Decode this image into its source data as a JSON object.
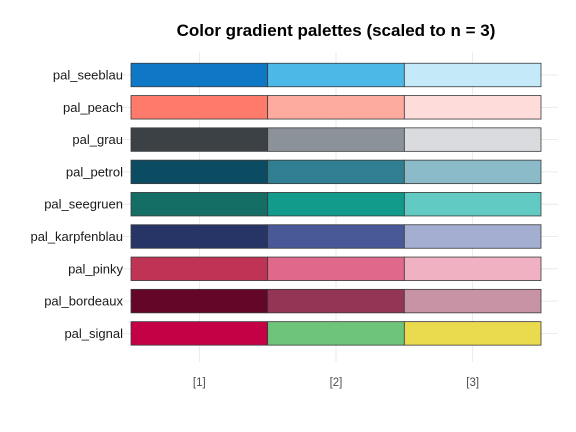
{
  "chart_data": {
    "type": "heatmap",
    "title": "Color gradient palettes (scaled to n = 3)",
    "xlabel": "",
    "ylabel": "",
    "x": [
      "[1]",
      "[2]",
      "[3]"
    ],
    "grid": true,
    "palettes": [
      {
        "name": "pal_seeblau",
        "colors": [
          "#0f78c6",
          "#4cb8e7",
          "#c4eaf9"
        ]
      },
      {
        "name": "pal_peach",
        "colors": [
          "#fe7b6b",
          "#fdab9f",
          "#fedcd9"
        ]
      },
      {
        "name": "pal_grau",
        "colors": [
          "#3b4145",
          "#8b929a",
          "#d9dbde"
        ]
      },
      {
        "name": "pal_petrol",
        "colors": [
          "#0c4c62",
          "#2f7e92",
          "#8bbac8"
        ]
      },
      {
        "name": "pal_seegruen",
        "colors": [
          "#146e66",
          "#129a8b",
          "#61cac3"
        ]
      },
      {
        "name": "pal_karpfenblau",
        "colors": [
          "#263566",
          "#495896",
          "#a3aed0"
        ]
      },
      {
        "name": "pal_pinky",
        "colors": [
          "#bf3354",
          "#e0698b",
          "#f0b2c3"
        ]
      },
      {
        "name": "pal_bordeaux",
        "colors": [
          "#630628",
          "#953555",
          "#c893a5"
        ]
      },
      {
        "name": "pal_signal",
        "colors": [
          "#c50145",
          "#6fc47b",
          "#eada4e"
        ]
      }
    ]
  }
}
